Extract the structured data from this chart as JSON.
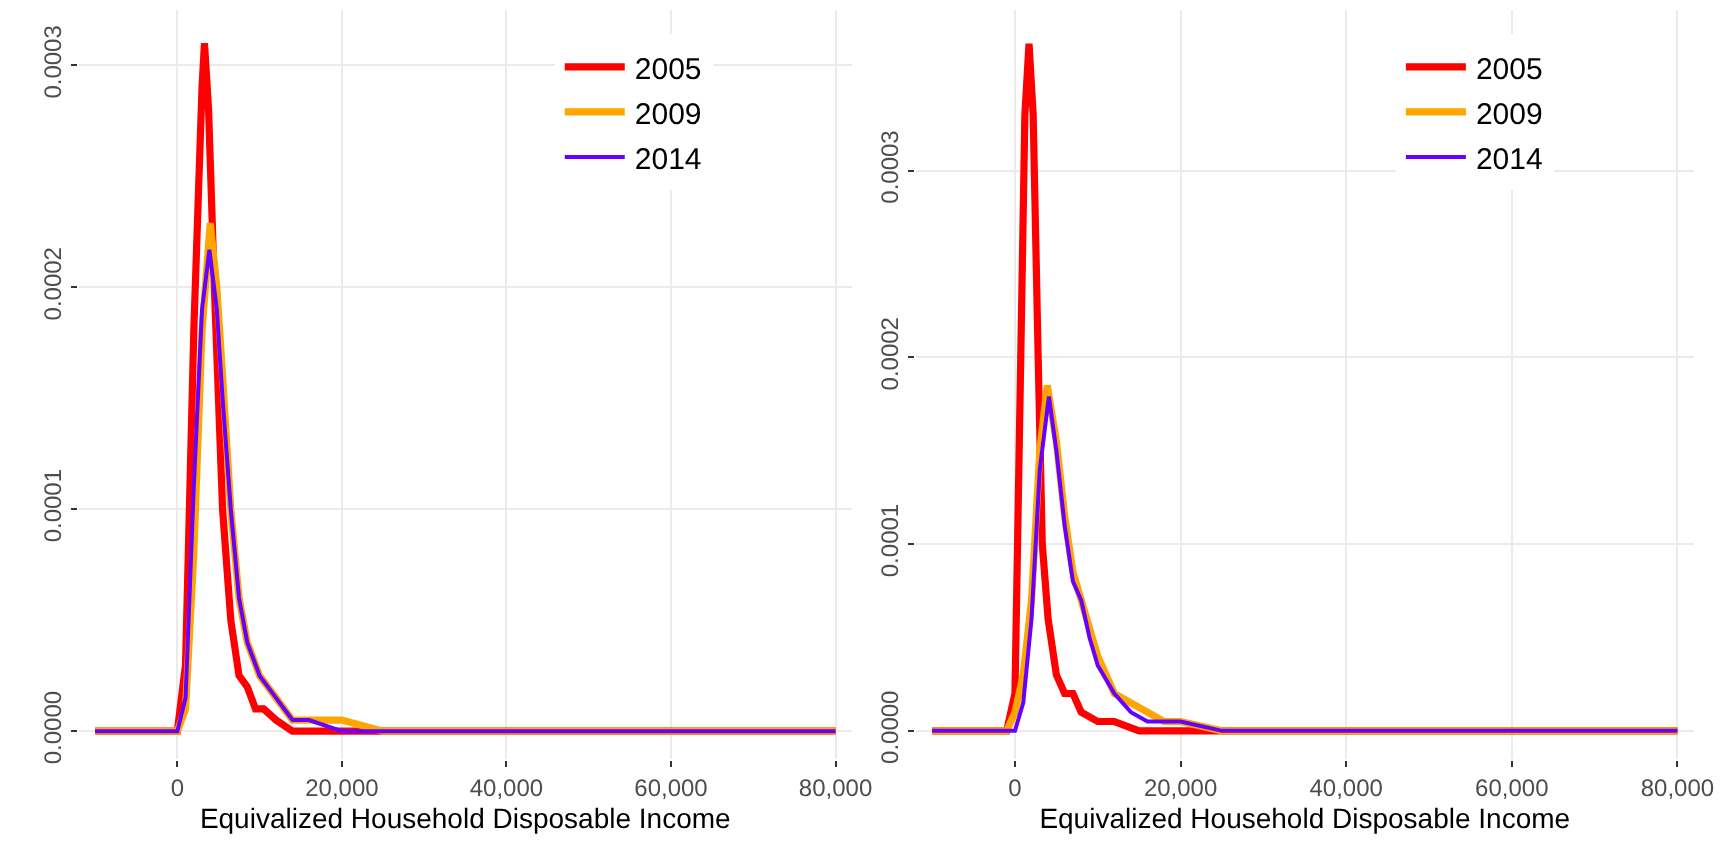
{
  "chart_data": [
    {
      "type": "line",
      "xlabel": "Equivalized Household Disposable Income",
      "xlim": [
        -12000,
        82000
      ],
      "xticks": [
        {
          "value": 0,
          "label": "0"
        },
        {
          "value": 20000,
          "label": "20,000"
        },
        {
          "value": 40000,
          "label": "40,000"
        },
        {
          "value": 60000,
          "label": "60,000"
        },
        {
          "value": 80000,
          "label": "80,000"
        }
      ],
      "ylim": [
        -1.25e-05,
        0.000325
      ],
      "yticks": [
        {
          "value": 0,
          "label": "0.0000"
        },
        {
          "value": 0.0001,
          "label": "0.0001"
        },
        {
          "value": 0.0002,
          "label": "0.0002"
        },
        {
          "value": 0.0003,
          "label": "0.0003"
        }
      ],
      "grid": true,
      "legend": "top right",
      "marker": "none",
      "line_style": "solid",
      "series": [
        {
          "name": "2005",
          "color": "#ff0000",
          "x": [
            -10000,
            -2000,
            0,
            1000,
            2000,
            3000,
            3300,
            3800,
            4500,
            5500,
            6500,
            7500,
            8500,
            9500,
            10500,
            12000,
            14000,
            16000,
            20000,
            80000
          ],
          "values": [
            0,
            0,
            0,
            3e-05,
            0.00018,
            0.00029,
            0.00031,
            0.00028,
            0.0002,
            0.0001,
            5e-05,
            2.5e-05,
            2e-05,
            1e-05,
            1e-05,
            5e-06,
            0,
            0,
            0,
            0
          ]
        },
        {
          "name": "2009",
          "color": "#ffa500",
          "x": [
            -10000,
            -1000,
            0,
            1000,
            2000,
            3000,
            4000,
            4800,
            5500,
            6500,
            7500,
            8500,
            10000,
            12000,
            14000,
            16000,
            20000,
            25000,
            30000,
            80000
          ],
          "values": [
            0,
            0,
            0,
            1e-05,
            8e-05,
            0.00018,
            0.000229,
            0.0002,
            0.00016,
            0.0001,
            6e-05,
            4e-05,
            2.5e-05,
            1.5e-05,
            5e-06,
            5e-06,
            5e-06,
            0,
            0,
            0
          ]
        },
        {
          "name": "2014",
          "color": "#6600ff",
          "x": [
            -10000,
            -1000,
            0,
            1000,
            2000,
            3000,
            3900,
            4800,
            5500,
            6500,
            7500,
            8500,
            10000,
            12000,
            13000,
            14000,
            16000,
            20000,
            25000,
            80000
          ],
          "values": [
            0,
            0,
            0,
            1.5e-05,
            0.00011,
            0.00019,
            0.000217,
            0.00019,
            0.00015,
            0.0001,
            6e-05,
            4e-05,
            2.5e-05,
            1.5e-05,
            1e-05,
            5e-06,
            5e-06,
            0,
            0,
            0
          ]
        }
      ]
    },
    {
      "type": "line",
      "xlabel": "Equivalized Household Disposable Income",
      "xlim": [
        -12000,
        82000
      ],
      "xticks": [
        {
          "value": 0,
          "label": "0"
        },
        {
          "value": 20000,
          "label": "20,000"
        },
        {
          "value": 40000,
          "label": "40,000"
        },
        {
          "value": 60000,
          "label": "60,000"
        },
        {
          "value": 80000,
          "label": "80,000"
        }
      ],
      "ylim": [
        -1.5e-05,
        0.000386
      ],
      "yticks": [
        {
          "value": 0,
          "label": "0.0000"
        },
        {
          "value": 0.0001,
          "label": "0.0001"
        },
        {
          "value": 0.0002,
          "label": "0.0002"
        },
        {
          "value": 0.0003,
          "label": "0.0003"
        }
      ],
      "grid": true,
      "legend": "top right",
      "marker": "none",
      "line_style": "solid",
      "series": [
        {
          "name": "2005",
          "color": "#ff0000",
          "x": [
            -10000,
            -1000,
            0,
            700,
            1200,
            1700,
            2200,
            2800,
            3300,
            4000,
            5000,
            6000,
            7000,
            8000,
            10000,
            12000,
            15000,
            80000
          ],
          "values": [
            0,
            0,
            2e-05,
            0.0002,
            0.00033,
            0.000368,
            0.00033,
            0.0002,
            0.0001,
            6e-05,
            3e-05,
            2e-05,
            2e-05,
            1e-05,
            5e-06,
            5e-06,
            0,
            0
          ]
        },
        {
          "name": "2009",
          "color": "#ffa500",
          "x": [
            -10000,
            -1000,
            0,
            1000,
            2000,
            3000,
            3900,
            5000,
            6000,
            7000,
            8000,
            9000,
            10000,
            12000,
            14000,
            16000,
            18000,
            20000,
            25000,
            30000,
            80000
          ],
          "values": [
            0,
            0,
            1e-05,
            3e-05,
            7e-05,
            0.00015,
            0.000185,
            0.000155,
            0.000115,
            8.5e-05,
            7e-05,
            5.5e-05,
            4e-05,
            2e-05,
            1.5e-05,
            1e-05,
            5e-06,
            5e-06,
            0,
            0,
            0
          ]
        },
        {
          "name": "2014",
          "color": "#6600ff",
          "x": [
            -10000,
            -1000,
            0,
            1000,
            2000,
            3000,
            4100,
            5000,
            6000,
            7000,
            8000,
            9000,
            10000,
            12000,
            14000,
            16000,
            18000,
            20000,
            25000,
            30000,
            80000
          ],
          "values": [
            0,
            0,
            0,
            1.5e-05,
            6e-05,
            0.00014,
            0.000179,
            0.00015,
            0.00011,
            8e-05,
            7e-05,
            5e-05,
            3.5e-05,
            2e-05,
            1e-05,
            5e-06,
            5e-06,
            5e-06,
            0,
            0,
            0
          ]
        }
      ]
    }
  ]
}
